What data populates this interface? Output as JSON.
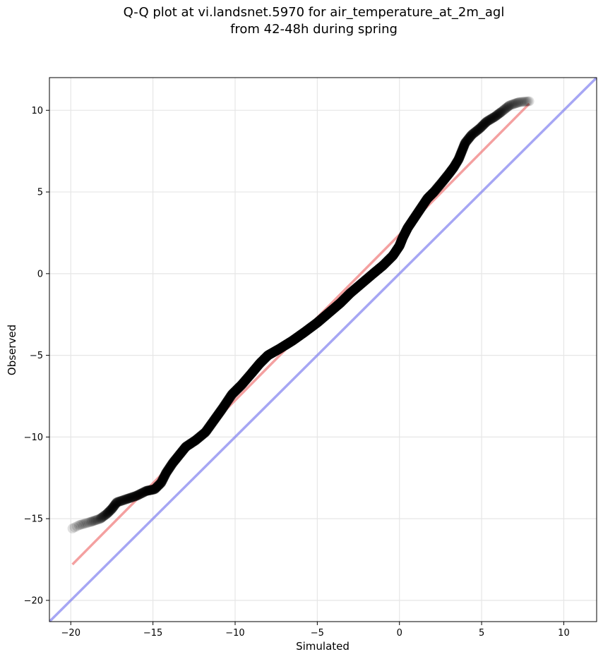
{
  "title": {
    "line1": "Q-Q plot at vi.landsnet.5970 for air_temperature_at_2m_agl",
    "line2": "from 42-48h during spring"
  },
  "chart_data": {
    "type": "scatter",
    "xlabel": "Simulated",
    "ylabel": "Observed",
    "xlim": [
      -21.3,
      12.0
    ],
    "ylim": [
      -21.3,
      12.0
    ],
    "x_ticks": [
      -20,
      -15,
      -10,
      -5,
      0,
      5,
      10
    ],
    "y_ticks": [
      -20,
      -15,
      -10,
      -5,
      0,
      5,
      10
    ],
    "x_tick_labels": [
      "−20",
      "−15",
      "−10",
      "−5",
      "0",
      "5",
      "10"
    ],
    "y_tick_labels": [
      "−20",
      "−15",
      "−10",
      "−5",
      "0",
      "5",
      "10"
    ],
    "grid": true,
    "colors": {
      "points": "#000000",
      "fit_line": "#f08080",
      "identity_line": "#8080f0",
      "grid": "#e6e6e6"
    },
    "quantile_curve": [
      [
        -19.9,
        -15.6
      ],
      [
        -19.5,
        -15.4
      ],
      [
        -18.8,
        -15.2
      ],
      [
        -18.2,
        -15.0
      ],
      [
        -17.8,
        -14.7
      ],
      [
        -17.5,
        -14.4
      ],
      [
        -17.2,
        -14.0
      ],
      [
        -16.6,
        -13.8
      ],
      [
        -16.0,
        -13.6
      ],
      [
        -15.4,
        -13.3
      ],
      [
        -14.9,
        -13.2
      ],
      [
        -14.5,
        -12.8
      ],
      [
        -14.2,
        -12.2
      ],
      [
        -13.8,
        -11.6
      ],
      [
        -13.4,
        -11.1
      ],
      [
        -13.0,
        -10.6
      ],
      [
        -12.4,
        -10.2
      ],
      [
        -11.8,
        -9.7
      ],
      [
        -11.3,
        -9.0
      ],
      [
        -10.8,
        -8.3
      ],
      [
        -10.2,
        -7.4
      ],
      [
        -9.6,
        -6.8
      ],
      [
        -9.0,
        -6.1
      ],
      [
        -8.5,
        -5.5
      ],
      [
        -8.0,
        -5.0
      ],
      [
        -7.3,
        -4.6
      ],
      [
        -6.5,
        -4.1
      ],
      [
        -5.8,
        -3.6
      ],
      [
        -5.0,
        -3.0
      ],
      [
        -4.3,
        -2.4
      ],
      [
        -3.6,
        -1.8
      ],
      [
        -3.0,
        -1.2
      ],
      [
        -2.3,
        -0.6
      ],
      [
        -1.6,
        0.0
      ],
      [
        -1.0,
        0.5
      ],
      [
        -0.4,
        1.1
      ],
      [
        0.0,
        1.7
      ],
      [
        0.2,
        2.2
      ],
      [
        0.5,
        2.8
      ],
      [
        0.9,
        3.4
      ],
      [
        1.3,
        4.0
      ],
      [
        1.7,
        4.6
      ],
      [
        2.1,
        5.0
      ],
      [
        2.6,
        5.6
      ],
      [
        3.0,
        6.1
      ],
      [
        3.3,
        6.5
      ],
      [
        3.6,
        7.0
      ],
      [
        3.8,
        7.5
      ],
      [
        4.0,
        8.0
      ],
      [
        4.4,
        8.5
      ],
      [
        4.9,
        8.9
      ],
      [
        5.3,
        9.3
      ],
      [
        5.8,
        9.6
      ],
      [
        6.2,
        9.9
      ],
      [
        6.7,
        10.3
      ],
      [
        7.3,
        10.5
      ],
      [
        7.9,
        10.55
      ]
    ],
    "fit_line": [
      [
        -19.9,
        -17.8
      ],
      [
        7.9,
        10.4
      ]
    ],
    "identity_line": [
      [
        -21.3,
        -21.3
      ],
      [
        12.0,
        12.0
      ]
    ]
  }
}
